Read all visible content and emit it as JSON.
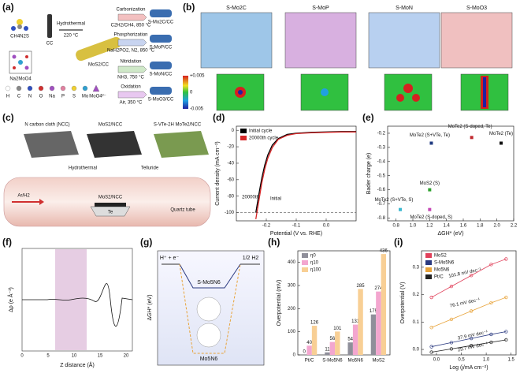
{
  "panels": {
    "labels": [
      "(a)",
      "(b)",
      "(c)",
      "(d)",
      "(e)",
      "(f)",
      "(g)",
      "(h)",
      "(i)"
    ],
    "a": {
      "reagents": [
        "CH4N2S",
        "CC",
        "Na2MoO4"
      ],
      "step": [
        "Hydrothermal",
        "220 °C"
      ],
      "intermediate": "MoS2/CC",
      "routes": [
        {
          "name": "Carbonization",
          "cond": "C2H2/CH4, 850 °C",
          "product": "S-Mo2C/CC"
        },
        {
          "name": "Phosphorization",
          "cond": "NaH2PO2, N2, 850 °C",
          "product": "S-MoP/CC"
        },
        {
          "name": "Nitridation",
          "cond": "NH3, 750 °C",
          "product": "S-MoN/CC"
        },
        {
          "name": "Oxidation",
          "cond": "Air, 350 °C",
          "product": "S-MoO3/CC"
        }
      ],
      "legend": [
        "H",
        "C",
        "N",
        "O",
        "Na",
        "P",
        "S",
        "Mo",
        "MoO4²⁻"
      ]
    },
    "b": {
      "titles": [
        "S-Mo2C",
        "S-MoP",
        "S-MoN",
        "S-MoO3"
      ],
      "colorbar": [
        "+0.005",
        "0",
        "-0.005"
      ]
    },
    "c": {
      "steps": [
        "N carbon cloth (NCC)",
        "MoS2/NCC",
        "S-VTe-2H MoTe2/NCC"
      ],
      "arrows": [
        "Hydrothermal",
        "Telluride"
      ],
      "tube": [
        "Ar/H2",
        "MoS2/NCC",
        "Te",
        "Quartz tube"
      ]
    },
    "f": {
      "xlabel": "Z distance (Å)",
      "ylabel": "Δρ (e Å⁻³)",
      "xticks": [
        "0",
        "5",
        "10",
        "15",
        "20"
      ]
    },
    "g": {
      "top": [
        "H⁺ + e⁻",
        "1/2 H2"
      ],
      "curves": [
        "S-Mo5N6",
        "Mo5N6"
      ],
      "ylabel": "ΔGH* (eV)"
    }
  },
  "chart_data": [
    {
      "type": "line",
      "x_label": "Potential (V vs. RHE)",
      "y_label": "Current density (mA cm⁻²)",
      "x": [
        -0.235,
        -0.225,
        -0.215,
        -0.205,
        -0.195,
        -0.18,
        -0.16,
        -0.13,
        -0.1,
        -0.05,
        0,
        0.05,
        0.1
      ],
      "series": [
        {
          "name": "Initial cycle",
          "color": "#000000",
          "values": [
            -100,
            -78,
            -58,
            -42,
            -30,
            -18,
            -10,
            -5,
            -3.5,
            -2.5,
            -2,
            -1.5,
            -1.5
          ]
        },
        {
          "name": "20000th cycle",
          "color": "#d62728",
          "values": [
            -108,
            -86,
            -64,
            -47,
            -34,
            -21,
            -11,
            -6,
            -4,
            -3,
            -2.5,
            -2,
            -2
          ]
        }
      ],
      "xlim": [
        -0.3,
        0.1
      ],
      "xticks": [
        -0.2,
        -0.1,
        {
          "value": 0,
          "label": "0.0"
        }
      ],
      "ylim": [
        -110,
        5
      ],
      "yticks": [
        -100,
        -80,
        -60,
        -40,
        -20,
        0
      ],
      "reference_line": -100,
      "annotations": [
        "20000th",
        "Initial"
      ],
      "legend": "upper left"
    },
    {
      "type": "scatter",
      "x_label": "ΔGH* (eV)",
      "y_label": "Bader charge (e)",
      "series": [
        {
          "name": "MoTe2 (S+VTe, Te)",
          "color": "#1f3a80",
          "x": [
            1.22
          ],
          "values": [
            -0.27
          ]
        },
        {
          "name": "MoTe2 (S-doped, Te)",
          "color": "#c0282d",
          "x": [
            1.7
          ],
          "values": [
            -0.23
          ]
        },
        {
          "name": "MoTe2 (Te)",
          "color": "#111111",
          "x": [
            2.05
          ],
          "values": [
            -0.27
          ]
        },
        {
          "name": "MoS2 (S)",
          "color": "#2ca02c",
          "x": [
            1.2
          ],
          "values": [
            -0.6
          ]
        },
        {
          "name": "MoTe2 (S+VTe, S)",
          "color": "#3bb8d0",
          "x": [
            0.85
          ],
          "values": [
            -0.74
          ]
        },
        {
          "name": "MoTe2 (S-doped, S)",
          "color": "#c548b5",
          "x": [
            1.2
          ],
          "values": [
            -0.74
          ]
        }
      ],
      "xlim": [
        0.7,
        2.2
      ],
      "xticks": [
        0.8,
        {
          "value": 1,
          "label": "1.0"
        },
        1.2,
        1.4,
        1.6,
        1.8,
        {
          "value": 2,
          "label": "2.0"
        },
        2.2
      ],
      "ylim": [
        -0.82,
        -0.15
      ],
      "yticks": [
        -0.8,
        -0.7,
        -0.6,
        -0.5,
        -0.4,
        -0.3,
        -0.2
      ]
    },
    {
      "type": "bar",
      "y_label": "Overpotential (mV)",
      "categories": [
        "Pt/C",
        "S-Mo5N6",
        "Mo5N6",
        "MoS2"
      ],
      "series": [
        {
          "name": "η0",
          "color": "#8f8f9a",
          "values": [
            0,
            11,
            54,
            175
          ]
        },
        {
          "name": "η10",
          "color": "#f3a6cf",
          "values": [
            40,
            56,
            131,
            274
          ]
        },
        {
          "name": "η100",
          "color": "#f8cf95",
          "values": [
            126,
            101,
            285,
            436
          ]
        }
      ],
      "ylim": [
        0,
        450
      ],
      "yticks": [
        0,
        100,
        200,
        300,
        400
      ],
      "legend": "upper left"
    },
    {
      "type": "line",
      "markers": true,
      "x_label": "Log (j/mA cm⁻²)",
      "y_label": "Overpotential (V)",
      "series": [
        {
          "name": "MoS2",
          "color": "#e0405a",
          "x": [
            -0.1,
            0.3,
            0.7,
            1.1,
            1.4
          ],
          "values": [
            0.19,
            0.23,
            0.27,
            0.31,
            0.33
          ]
        },
        {
          "name": "S-Mo5N6",
          "color": "#2b3a80",
          "x": [
            -0.1,
            0.3,
            0.7,
            1.1,
            1.4
          ],
          "values": [
            0.01,
            0.025,
            0.04,
            0.055,
            0.065
          ]
        },
        {
          "name": "Mo5N6",
          "color": "#e8a33a",
          "x": [
            -0.1,
            0.3,
            0.7,
            1.1,
            1.4
          ],
          "values": [
            0.08,
            0.11,
            0.14,
            0.17,
            0.19
          ]
        },
        {
          "name": "Pt/C",
          "color": "#222222",
          "x": [
            -0.1,
            0.3,
            0.7,
            1.1,
            1.4
          ],
          "values": [
            -0.01,
            0.002,
            0.014,
            0.026,
            0.035
          ]
        }
      ],
      "xlim": [
        -0.3,
        1.6
      ],
      "xticks": [
        {
          "value": 0,
          "label": "0.0"
        },
        0.5,
        {
          "value": 1,
          "label": "1.0"
        },
        1.5
      ],
      "ylim": [
        -0.02,
        0.36
      ],
      "yticks": [
        {
          "value": 0,
          "label": "0.0"
        },
        0.1,
        0.2,
        0.3
      ],
      "annotations": [
        "101.8 mV dec⁻¹",
        "37.9 mV dec⁻¹",
        "76.1 mV dec⁻¹",
        "29.7 mV dec⁻¹"
      ],
      "legend": "upper left"
    }
  ]
}
